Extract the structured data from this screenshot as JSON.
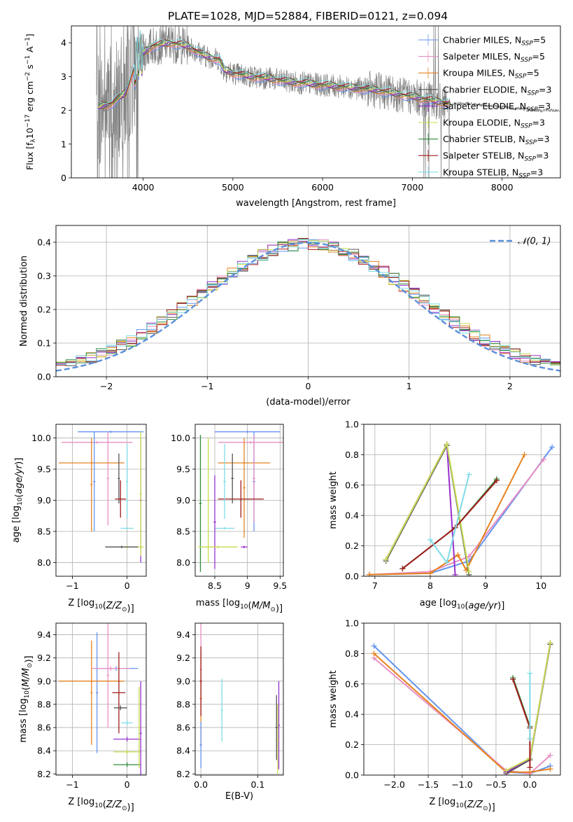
{
  "figure": {
    "title": "PLATE=1028, MJD=52884, FIBERID=0121, z=0.094"
  },
  "legend": {
    "entries": [
      {
        "label": "Chabrier MILES, N",
        "sub": "SSP",
        "suffix": "=5",
        "color": "#6495ed"
      },
      {
        "label": "Salpeter MILES, N",
        "sub": "SSP",
        "suffix": "=5",
        "color": "#e88fc2"
      },
      {
        "label": "Kroupa MILES, N",
        "sub": "SSP",
        "suffix": "=5",
        "color": "#e6821e"
      },
      {
        "label": "Chabrier ELODIE, N",
        "sub": "SSP",
        "suffix": "=3",
        "color": "#555555"
      },
      {
        "label": "Salpeter ELODIE, N",
        "sub": "SSP",
        "suffix": "=3",
        "color": "#9932cc"
      },
      {
        "label": "Kroupa ELODIE, N",
        "sub": "SSP",
        "suffix": "=3",
        "color": "#c8dc50"
      },
      {
        "label": "Chabrier STELIB, N",
        "sub": "SSP",
        "suffix": "=3",
        "color": "#2e8b3a"
      },
      {
        "label": "Salpeter STELIB, N",
        "sub": "SSP",
        "suffix": "=3",
        "color": "#a01c1c"
      },
      {
        "label": "Kroupa STELIB, N",
        "sub": "SSP",
        "suffix": "=3",
        "color": "#7fdbe6"
      }
    ],
    "normal_label": "𝒩(0, 1)"
  },
  "chart_data": [
    {
      "id": "spectrum",
      "type": "line",
      "xlabel": "wavelength [Angstrom, rest frame]",
      "ylabel": "Flux [f_λ10^-17 erg cm^-2 s^-1 A^-1]",
      "xlim": [
        3200,
        8650
      ],
      "ylim": [
        0,
        4.5
      ],
      "xticks": [
        4000,
        5000,
        6000,
        7000,
        8000
      ],
      "yticks": [
        0,
        1,
        2,
        3,
        4
      ],
      "data_color": "#808080",
      "model_continuum": {
        "x": [
          3500,
          3650,
          3800,
          3950,
          4100,
          4300,
          4500,
          4700,
          4850,
          4900,
          5000,
          5200,
          5400,
          5600,
          5800,
          6000,
          6200,
          6400,
          6600,
          6800,
          7000,
          7200,
          7400,
          7600,
          7800,
          8000,
          8200,
          8400
        ],
        "y": [
          2.1,
          2.2,
          2.5,
          3.6,
          3.9,
          4.0,
          3.9,
          3.6,
          3.5,
          3.2,
          3.1,
          3.0,
          2.95,
          2.85,
          2.8,
          2.75,
          2.7,
          2.65,
          2.6,
          2.5,
          2.4,
          2.3,
          2.2,
          2.2,
          2.15,
          2.1,
          2.05,
          2.0
        ]
      }
    },
    {
      "id": "residuals",
      "type": "area",
      "xlabel": "(data-model)/error",
      "ylabel": "Normed distribution",
      "xlim": [
        -2.5,
        2.5
      ],
      "ylim": [
        0,
        0.45
      ],
      "xticks": [
        -2,
        -1,
        0,
        1,
        2
      ],
      "yticks": [
        0.0,
        0.1,
        0.2,
        0.3,
        0.4
      ],
      "bin_width": 0.1
    },
    {
      "id": "age-vs-Z",
      "type": "scatter",
      "xlabel": "Z [log10(Z/Z⊙)]",
      "ylabel": "age [log10(age/yr)]",
      "xlim": [
        -1.3,
        0.35
      ],
      "ylim": [
        7.78,
        10.22
      ],
      "xticks": [
        -1,
        0
      ],
      "yticks": [
        8.0,
        8.5,
        9.0,
        9.5,
        10.0
      ]
    },
    {
      "id": "age-vs-mass",
      "type": "scatter",
      "xlabel": "mass [log10(M/M⊙)]",
      "ylabel": "",
      "xlim": [
        8.2,
        9.55
      ],
      "ylim": [
        7.78,
        10.22
      ],
      "xticks": [
        8.5,
        9.0,
        9.5
      ],
      "yticks": [
        8.0,
        8.5,
        9.0,
        9.5,
        10.0
      ]
    },
    {
      "id": "massweight-vs-age",
      "type": "line",
      "xlabel": "age [log10(age/yr)]",
      "ylabel": "mass weight",
      "xlim": [
        6.8,
        10.35
      ],
      "ylim": [
        0,
        1.0
      ],
      "xticks": [
        7,
        8,
        9,
        10
      ],
      "yticks": [
        0.0,
        0.2,
        0.4,
        0.6,
        0.8,
        1.0
      ],
      "series": [
        {
          "name": "Chabrier MILES",
          "x": [
            6.9,
            8.0,
            8.7,
            10.2
          ],
          "y": [
            0.01,
            0.02,
            0.1,
            0.85
          ]
        },
        {
          "name": "Salpeter MILES",
          "x": [
            6.9,
            8.0,
            8.7,
            10.05
          ],
          "y": [
            0.01,
            0.03,
            0.13,
            0.77
          ]
        },
        {
          "name": "Kroupa MILES",
          "x": [
            6.9,
            8.0,
            8.5,
            8.65,
            9.7
          ],
          "y": [
            0.01,
            0.02,
            0.14,
            0.04,
            0.8
          ]
        },
        {
          "name": "Chabrier ELODIE",
          "x": [
            7.2,
            8.3,
            8.7
          ],
          "y": [
            0.1,
            0.86,
            0.01
          ]
        },
        {
          "name": "Salpeter ELODIE",
          "x": [
            7.2,
            8.3,
            8.45
          ],
          "y": [
            0.11,
            0.87,
            0.01
          ]
        },
        {
          "name": "Kroupa ELODIE",
          "x": [
            7.2,
            8.3,
            8.7
          ],
          "y": [
            0.11,
            0.87,
            0.03
          ]
        },
        {
          "name": "Chabrier STELIB",
          "x": [
            7.5,
            8.45,
            9.2
          ],
          "y": [
            0.05,
            0.32,
            0.64
          ]
        },
        {
          "name": "Salpeter STELIB",
          "x": [
            7.5,
            8.45,
            9.2
          ],
          "y": [
            0.05,
            0.32,
            0.63
          ]
        },
        {
          "name": "Kroupa STELIB",
          "x": [
            8.0,
            8.3,
            8.7
          ],
          "y": [
            0.24,
            0.09,
            0.67
          ]
        }
      ]
    },
    {
      "id": "mass-vs-Z",
      "type": "scatter",
      "xlabel": "Z [log10(Z/Z⊙)]",
      "ylabel": "mass [log10(M/M⊙)]",
      "xlim": [
        -1.3,
        0.35
      ],
      "ylim": [
        8.19,
        9.5
      ],
      "xticks": [
        -1,
        0
      ],
      "yticks": [
        8.2,
        8.4,
        8.6,
        8.8,
        9.0,
        9.2,
        9.4
      ]
    },
    {
      "id": "mass-vs-EBV",
      "type": "scatter",
      "xlabel": "E(B-V)",
      "ylabel": "",
      "xlim": [
        -0.01,
        0.145
      ],
      "ylim": [
        8.19,
        9.5
      ],
      "xticks": [
        0.0,
        0.1
      ],
      "yticks": [
        8.2,
        8.4,
        8.6,
        8.8,
        9.0,
        9.2,
        9.4
      ]
    },
    {
      "id": "massweight-vs-Z",
      "type": "line",
      "xlabel": "Z [log10(Z/Z⊙)]",
      "ylabel": "mass weight",
      "xlim": [
        -2.45,
        0.45
      ],
      "ylim": [
        0,
        1.0
      ],
      "xticks": [
        -2.0,
        -1.5,
        -1.0,
        -0.5,
        0.0
      ],
      "yticks": [
        0.0,
        0.2,
        0.4,
        0.6,
        0.8,
        1.0
      ],
      "series": [
        {
          "name": "Chabrier MILES",
          "x": [
            -2.3,
            -0.35,
            0.0,
            0.3
          ],
          "y": [
            0.85,
            0.02,
            0.01,
            0.06
          ]
        },
        {
          "name": "Salpeter MILES",
          "x": [
            -2.3,
            -0.35,
            0.0,
            0.3
          ],
          "y": [
            0.77,
            0.03,
            0.01,
            0.13
          ]
        },
        {
          "name": "Kroupa MILES",
          "x": [
            -2.3,
            -0.35,
            0.0,
            0.3
          ],
          "y": [
            0.8,
            0.02,
            0.02,
            0.04
          ]
        },
        {
          "name": "Chabrier ELODIE",
          "x": [
            -0.35,
            0.0,
            0.3
          ],
          "y": [
            0.01,
            0.1,
            0.86
          ]
        },
        {
          "name": "Salpeter ELODIE",
          "x": [
            -0.35,
            0.0,
            0.3
          ],
          "y": [
            0.02,
            0.11,
            0.87
          ]
        },
        {
          "name": "Kroupa ELODIE",
          "x": [
            -0.35,
            0.0,
            0.3
          ],
          "y": [
            0.03,
            0.11,
            0.87
          ]
        },
        {
          "name": "Chabrier STELIB",
          "x": [
            -0.25,
            0.0
          ],
          "y": [
            0.64,
            0.32
          ]
        },
        {
          "name": "Salpeter STELIB",
          "x": [
            -0.25,
            0.0,
            0.0
          ],
          "y": [
            0.63,
            0.31,
            0.05
          ]
        },
        {
          "name": "Kroupa STELIB",
          "x": [
            0.0,
            0.0
          ],
          "y": [
            0.67,
            0.24
          ]
        }
      ]
    }
  ]
}
